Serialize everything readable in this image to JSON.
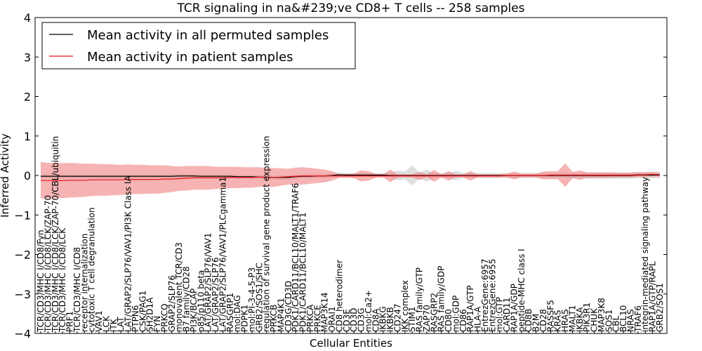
{
  "chart_data": {
    "type": "line",
    "title": "TCR signaling in na&#239;ve CD8+ T cells -- 258 samples",
    "xlabel": "Cellular Entities",
    "ylabel": "Inferred Activity",
    "ylim": [
      -4,
      4
    ],
    "yticks": [
      "4",
      "3",
      "2",
      "1",
      "0",
      "−1",
      "−2",
      "−3",
      "−4"
    ],
    "yticks_values": [
      4,
      3,
      2,
      1,
      0,
      -1,
      -2,
      -3,
      -4
    ],
    "legend": {
      "location": "top-left",
      "entries": [
        {
          "name": "Mean activity in all permuted samples",
          "color": "#000000"
        },
        {
          "name": "Mean activity in patient samples",
          "color": "#e8141c"
        }
      ]
    },
    "categories": [
      "TCR/CD3/MHC I/CD8/Fyn",
      "TCR/CD3/MHC I/CD8/LCK/ZAP-70",
      "TCR/CD3/MHC I/CD8/LCK/ZAP-70/CBL/ubiquitin",
      "TCR/CD3/MHC I/CD8/LCK",
      "PRF1",
      "TCR/CD3/MHC I/CD8",
      "receptor internalization",
      "cytotoxic T cell degranulation",
      "VAV1",
      "LCK",
      "ITK",
      "LAT",
      "LAT/GRAP2/SLP76/VAV1/PI3K Class IA",
      "PTPN6",
      "CSK/PAG1",
      "SH2D1A",
      "FYN",
      "PRKCQ",
      "GRAP2/SLP76",
      "monovalent TCR/CD3",
      "B7 family/CD28",
      "PI3K/BCAP",
      "p85/p110 beta",
      "LAT/GRAP2/SLP76/VAV1",
      "LAT/GRAP2/SLP76",
      "LAT/GRAP2/SLP76/VAV1/PLCgamma1",
      "RASGRP1",
      "mol:DAG",
      "PDPK1",
      "mol:PI-3-4-5-P3",
      "GRB2/SOS1/SHC",
      "regulation of survival gene product expression",
      "PRKCB",
      "MAP4K1",
      "CD3G/CD3D",
      "PDK1/CARD11/BCL10/MALT1/TRAF6",
      "PDK1/CARD11/BCL10/MALT1",
      "PRKCA",
      "PRKCE",
      "MAP3K14",
      "ORAI1",
      "CD8 heterodimer",
      "CD3E",
      "CD3D",
      "CD3G",
      "mol:Ca2+",
      "CD8A",
      "IKBKG",
      "IKBKB",
      "CD247",
      "IKK complex",
      "STIM1",
      "RAS family/GTP",
      "ZAP70",
      "RASGRP2",
      "RAS family/GDP",
      "CD80",
      "mol:GDP",
      "CD86",
      "RAP1A/GTP",
      "HLA-A",
      "EntrezGene:6957",
      "EntrezGene:6955",
      "mol:GTP",
      "CARD11",
      "RAP1A/GDP",
      "peptide-MHC class I",
      "CD8B",
      "B2M",
      "CD28",
      "RASSF5",
      "KRAS",
      "HRAS",
      "MALT1",
      "IKBKA",
      "PIK3R1",
      "CHUK",
      "MAP3K8",
      "SOS1",
      "CBL",
      "BCL10",
      "NRAS",
      "TRAF6",
      "integrin-mediated signaling pathway",
      "RAP1A/GTP/RAPL",
      "GRB2/SOS1"
    ],
    "series": [
      {
        "name": "Mean activity in all permuted samples",
        "color": "#000000",
        "values": [
          -0.02,
          -0.02,
          -0.02,
          -0.02,
          -0.02,
          -0.02,
          -0.02,
          -0.02,
          -0.02,
          -0.02,
          -0.02,
          -0.02,
          -0.02,
          -0.02,
          -0.02,
          -0.02,
          -0.02,
          -0.02,
          -0.02,
          -0.01,
          -0.01,
          -0.01,
          -0.02,
          -0.02,
          -0.02,
          -0.02,
          -0.02,
          -0.03,
          -0.03,
          -0.03,
          -0.04,
          -0.04,
          -0.05,
          -0.05,
          -0.05,
          -0.03,
          -0.02,
          -0.02,
          -0.01,
          -0.01,
          0.0,
          0.02,
          0.01,
          0.01,
          0.01,
          0.01,
          0.01,
          0.01,
          0.0,
          0.0,
          0.0,
          0.0,
          0.0,
          0.0,
          0.0,
          0.0,
          0.0,
          0.0,
          0.0,
          0.0,
          0.0,
          0.0,
          0.0,
          0.0,
          0.0,
          0.0,
          0.0,
          0.0,
          0.0,
          0.0,
          0.0,
          0.0,
          0.0,
          0.0,
          0.0,
          0.0,
          0.0,
          0.0,
          0.0,
          0.0,
          0.0,
          0.0,
          0.01,
          0.01,
          0.01,
          0.01
        ]
      },
      {
        "name": "Mean activity in patient samples",
        "color": "#e8141c",
        "values": [
          -0.12,
          -0.13,
          -0.13,
          -0.13,
          -0.12,
          -0.12,
          -0.12,
          -0.11,
          -0.11,
          -0.11,
          -0.11,
          -0.11,
          -0.1,
          -0.1,
          -0.1,
          -0.1,
          -0.1,
          -0.09,
          -0.09,
          -0.08,
          -0.07,
          -0.06,
          -0.06,
          -0.06,
          -0.06,
          -0.06,
          -0.05,
          -0.05,
          -0.05,
          -0.05,
          -0.04,
          -0.05,
          -0.05,
          -0.04,
          -0.03,
          -0.02,
          -0.01,
          -0.01,
          -0.01,
          -0.01,
          -0.01,
          -0.01,
          -0.01,
          -0.01,
          -0.01,
          -0.01,
          -0.01,
          -0.01,
          -0.01,
          -0.01,
          -0.01,
          -0.01,
          -0.01,
          -0.01,
          -0.01,
          -0.01,
          -0.01,
          -0.01,
          -0.01,
          -0.01,
          -0.01,
          -0.01,
          -0.01,
          -0.01,
          0.0,
          0.0,
          0.0,
          0.0,
          0.0,
          0.0,
          0.01,
          0.01,
          0.01,
          0.01,
          0.01,
          0.01,
          0.01,
          0.01,
          0.01,
          0.01,
          0.01,
          0.01,
          0.02,
          0.02,
          0.03,
          0.02
        ]
      }
    ],
    "patient_band": [
      0.46,
      0.45,
      0.45,
      0.44,
      0.44,
      0.43,
      0.42,
      0.41,
      0.4,
      0.4,
      0.39,
      0.38,
      0.38,
      0.37,
      0.37,
      0.36,
      0.36,
      0.35,
      0.33,
      0.31,
      0.31,
      0.3,
      0.3,
      0.3,
      0.28,
      0.28,
      0.27,
      0.27,
      0.26,
      0.26,
      0.25,
      0.24,
      0.24,
      0.22,
      0.2,
      0.22,
      0.22,
      0.2,
      0.18,
      0.16,
      0.12,
      0.05,
      0.05,
      0.06,
      0.14,
      0.12,
      0.05,
      0.04,
      0.16,
      0.04,
      0.04,
      0.04,
      0.1,
      0.04,
      0.15,
      0.04,
      0.12,
      0.04,
      0.04,
      0.12,
      0.04,
      0.04,
      0.04,
      0.04,
      0.05,
      0.1,
      0.05,
      0.05,
      0.05,
      0.1,
      0.1,
      0.1,
      0.3,
      0.08,
      0.12,
      0.07,
      0.07,
      0.07,
      0.07,
      0.06,
      0.06,
      0.06,
      0.06,
      0.06,
      0.06,
      0.05
    ],
    "permuted_band": [
      0.05,
      0.05,
      0.05,
      0.05,
      0.05,
      0.05,
      0.05,
      0.05,
      0.05,
      0.05,
      0.05,
      0.05,
      0.05,
      0.05,
      0.05,
      0.05,
      0.05,
      0.05,
      0.05,
      0.05,
      0.05,
      0.05,
      0.05,
      0.05,
      0.05,
      0.05,
      0.05,
      0.05,
      0.05,
      0.05,
      0.05,
      0.05,
      0.05,
      0.05,
      0.05,
      0.05,
      0.05,
      0.05,
      0.05,
      0.05,
      0.05,
      0.05,
      0.05,
      0.05,
      0.05,
      0.05,
      0.05,
      0.05,
      0.05,
      0.12,
      0.1,
      0.25,
      0.08,
      0.15,
      0.06,
      0.06,
      0.06,
      0.12,
      0.06,
      0.06,
      0.06,
      0.06,
      0.06,
      0.06,
      0.06,
      0.06,
      0.06,
      0.06,
      0.06,
      0.06,
      0.06,
      0.06,
      0.06,
      0.06,
      0.06,
      0.08,
      0.08,
      0.08,
      0.08,
      0.08,
      0.08,
      0.08,
      0.08,
      0.08,
      0.08,
      0.08
    ],
    "colors": {
      "patient_fill": "#f08080",
      "permuted_fill": "#c8c8c8",
      "axis": "#000000"
    }
  }
}
